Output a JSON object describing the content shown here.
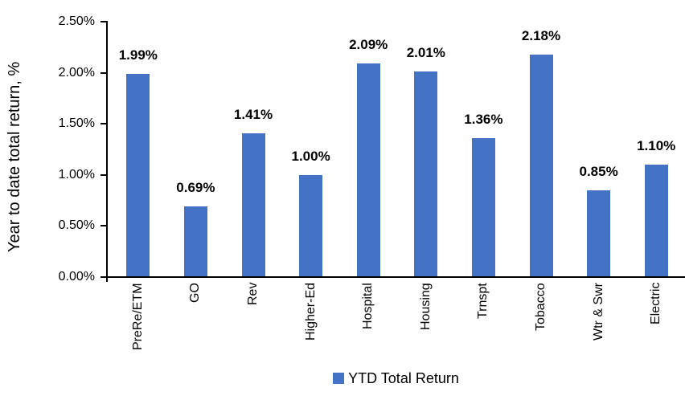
{
  "chart_data": {
    "type": "bar",
    "title": "",
    "ylabel": "Year to date total return, %",
    "xlabel": "",
    "categories": [
      "PreRe/ETM",
      "GO",
      "Rev",
      "Higher-Ed",
      "Hospital",
      "Housing",
      "Trnspt",
      "Tobacco",
      "Wtr & Swr",
      "Electric"
    ],
    "series": [
      {
        "name": "YTD Total Return",
        "values": [
          1.99,
          0.69,
          1.41,
          1.0,
          2.09,
          2.01,
          1.36,
          2.18,
          0.85,
          1.1
        ]
      }
    ],
    "data_labels": [
      "1.99%",
      "0.69%",
      "1.41%",
      "1.00%",
      "2.09%",
      "2.01%",
      "1.36%",
      "2.18%",
      "0.85%",
      "1.10%"
    ],
    "y_ticks": [
      "0.00%",
      "0.50%",
      "1.00%",
      "1.50%",
      "2.00%",
      "2.50%"
    ],
    "ylim": [
      0,
      2.5
    ],
    "y_step": 0.5,
    "grid": false,
    "legend_position": "bottom-center",
    "bar_color": "#4472C4",
    "axis_color": "#000000",
    "text_color": "#000000"
  }
}
